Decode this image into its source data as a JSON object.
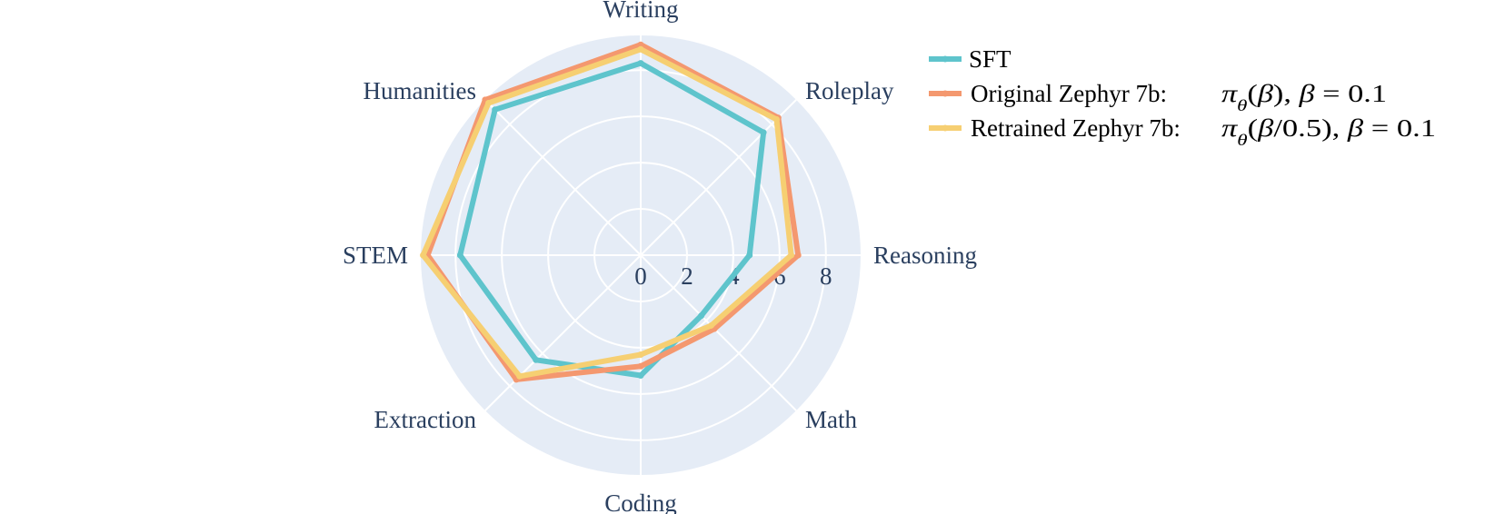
{
  "chart_data": {
    "type": "radar",
    "axes": [
      "Writing",
      "Roleplay",
      "Reasoning",
      "Math",
      "Coding",
      "Extraction",
      "STEM",
      "Humanities"
    ],
    "radial_ticks": [
      "0",
      "2",
      "4",
      "6",
      "8"
    ],
    "rmax": 9.5,
    "grid": true,
    "legend_position": "top-right",
    "series": [
      {
        "name": "SFT",
        "color": "#5ec4cc",
        "values": [
          8.3,
          7.5,
          4.7,
          3.7,
          5.2,
          6.4,
          7.8,
          8.9
        ]
      },
      {
        "name": "Original Zephyr 7b:",
        "math": "π_θ(β), β = 0.1",
        "color": "#f4986f",
        "values": [
          9.1,
          8.4,
          6.8,
          4.5,
          4.8,
          7.6,
          9.2,
          9.5
        ]
      },
      {
        "name": "Retrained Zephyr 7b:",
        "math": "π_θ(β/0.5), β = 0.1",
        "color": "#f6cf72",
        "values": [
          8.9,
          8.3,
          6.5,
          4.3,
          4.3,
          7.4,
          9.4,
          9.3
        ]
      }
    ]
  }
}
